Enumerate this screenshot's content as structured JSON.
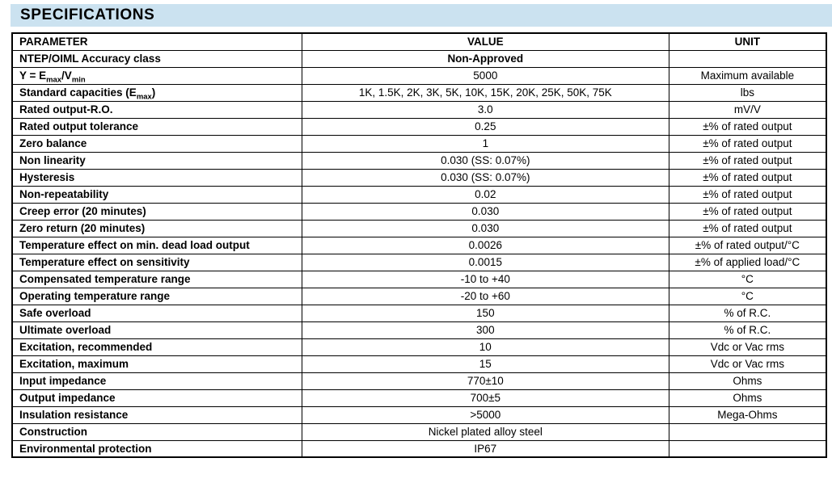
{
  "page": {
    "title": "SPECIFICATIONS",
    "title_bar_color": "#cbe2f0",
    "border_color": "#000000"
  },
  "table": {
    "columns": [
      "PARAMETER",
      "VALUE",
      "UNIT"
    ],
    "rows": [
      {
        "parameter": "NTEP/OIML Accuracy class",
        "value": "Non-Approved",
        "unit": "",
        "bold_value": true
      },
      {
        "parameter": "Y = E~max~/V~min~",
        "value": "5000",
        "unit": "Maximum available"
      },
      {
        "parameter": "Standard capacities (E~max~)",
        "value": "1K, 1.5K, 2K, 3K, 5K, 10K, 15K, 20K, 25K, 50K, 75K",
        "unit": "lbs"
      },
      {
        "parameter": "Rated output-R.O.",
        "value": "3.0",
        "unit": "mV/V"
      },
      {
        "parameter": "Rated output tolerance",
        "value": "0.25",
        "unit": "±% of rated output"
      },
      {
        "parameter": "Zero balance",
        "value": "1",
        "unit": "±% of rated output"
      },
      {
        "parameter": "Non linearity",
        "value": "0.030 (SS: 0.07%)",
        "unit": "±% of rated output"
      },
      {
        "parameter": "Hysteresis",
        "value": "0.030 (SS: 0.07%)",
        "unit": "±% of rated output"
      },
      {
        "parameter": "Non-repeatability",
        "value": "0.02",
        "unit": "±% of rated output"
      },
      {
        "parameter": "Creep error (20 minutes)",
        "value": "0.030",
        "unit": "±% of rated output"
      },
      {
        "parameter": "Zero return (20 minutes)",
        "value": "0.030",
        "unit": "±% of rated output"
      },
      {
        "parameter": "Temperature effect on min. dead load output",
        "value": "0.0026",
        "unit": "±% of rated output/°C"
      },
      {
        "parameter": "Temperature effect on sensitivity",
        "value": "0.0015",
        "unit": "±% of applied load/°C"
      },
      {
        "parameter": "Compensated temperature range",
        "value": "-10 to +40",
        "unit": "°C"
      },
      {
        "parameter": "Operating temperature range",
        "value": "-20 to +60",
        "unit": "°C"
      },
      {
        "parameter": "Safe overload",
        "value": "150",
        "unit": "% of R.C."
      },
      {
        "parameter": "Ultimate overload",
        "value": "300",
        "unit": "% of R.C."
      },
      {
        "parameter": "Excitation, recommended",
        "value": "10",
        "unit": "Vdc or Vac rms"
      },
      {
        "parameter": "Excitation, maximum",
        "value": "15",
        "unit": "Vdc or Vac rms"
      },
      {
        "parameter": "Input impedance",
        "value": "770±10",
        "unit": "Ohms"
      },
      {
        "parameter": "Output impedance",
        "value": "700±5",
        "unit": "Ohms"
      },
      {
        "parameter": "Insulation resistance",
        "value": ">5000",
        "unit": "Mega-Ohms"
      },
      {
        "parameter": "Construction",
        "value": "Nickel plated alloy steel",
        "unit": ""
      },
      {
        "parameter": "Environmental protection",
        "value": "IP67",
        "unit": ""
      }
    ]
  }
}
